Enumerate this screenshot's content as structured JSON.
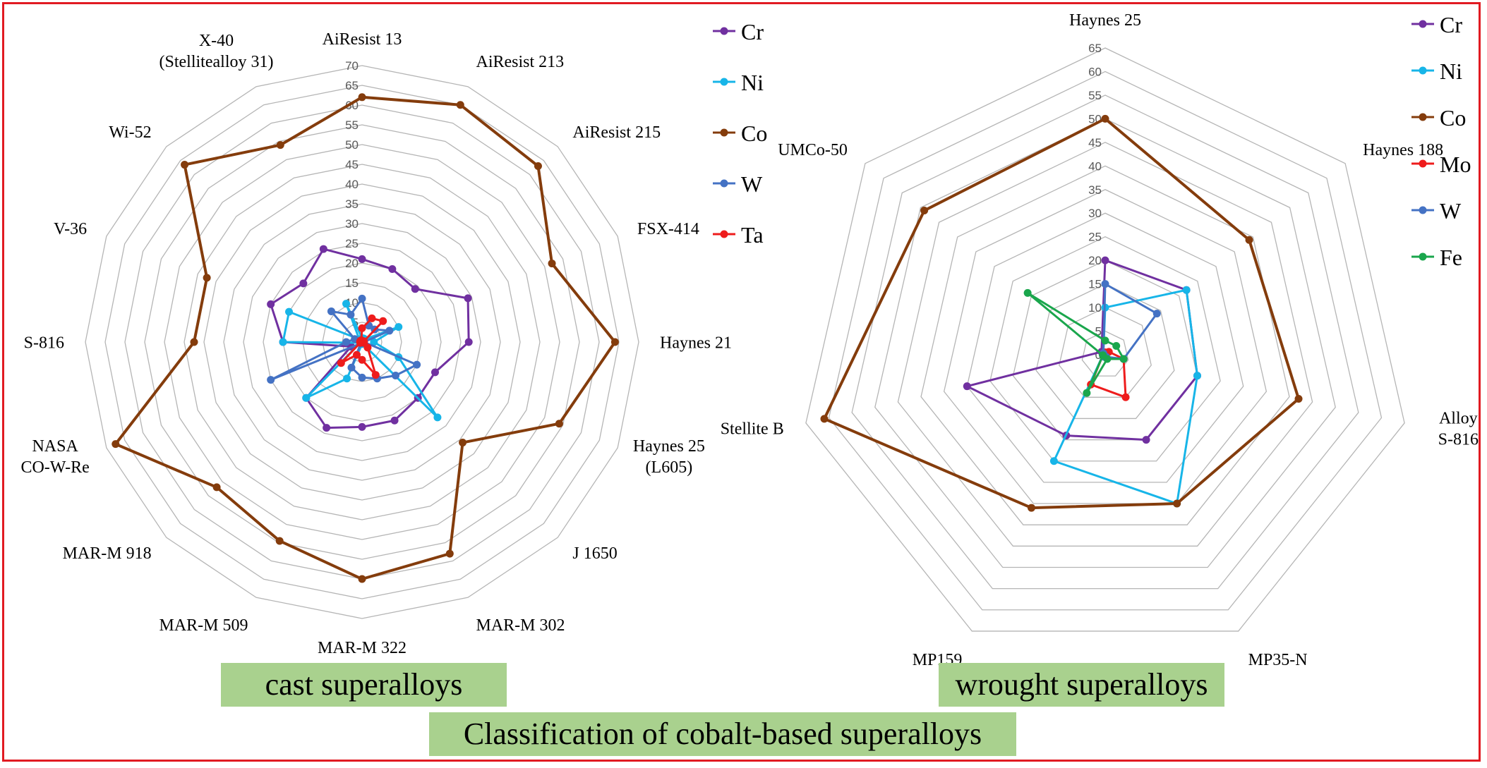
{
  "main_title": "Classification of cobalt-based superalloys",
  "series_colors": {
    "Cr": "#7030a0",
    "Ni": "#17b5e8",
    "Co": "#843c0c",
    "Mo": "#ee1c1c",
    "W": "#4472c4",
    "Ta": "#ee1c1c",
    "Fe": "#1aa64c"
  },
  "chart_data": [
    {
      "type": "radar",
      "caption": "cast superalloys",
      "axis_max": 70,
      "axis_step": 5,
      "ticks": [
        "0",
        "5",
        "10",
        "15",
        "20",
        "25",
        "30",
        "35",
        "40",
        "45",
        "50",
        "55",
        "60",
        "65",
        "70"
      ],
      "categories": [
        [
          "AiResist 13"
        ],
        [
          "AiResist 213"
        ],
        [
          "AiResist 215"
        ],
        [
          "FSX-414"
        ],
        [
          "Haynes 21"
        ],
        [
          "Haynes 25",
          "(L605)"
        ],
        [
          "J 1650"
        ],
        [
          "MAR-M 302"
        ],
        [
          "MAR-M 322"
        ],
        [
          "MAR-M 509"
        ],
        [
          "MAR-M 918"
        ],
        [
          "NASA",
          "CO-W-Re"
        ],
        [
          "S-816"
        ],
        [
          "V-36"
        ],
        [
          "Wi-52"
        ],
        [
          "X-40",
          "(Stellitealloy 31)"
        ]
      ],
      "legend": [
        "Cr",
        "Ni",
        "Co",
        "W",
        "Ta"
      ],
      "series": [
        {
          "name": "Cr",
          "values": [
            21,
            20,
            19,
            29,
            27,
            20,
            20,
            21.5,
            21.5,
            23.5,
            20,
            3,
            20,
            25,
            21,
            25.5
          ]
        },
        {
          "name": "Ni",
          "values": [
            1,
            1,
            1,
            10,
            3,
            10,
            27,
            0.5,
            0.5,
            10,
            20,
            0.5,
            20,
            20,
            1,
            10.5
          ]
        },
        {
          "name": "Co",
          "values": [
            62,
            65,
            63,
            52,
            64,
            54,
            36,
            58,
            60,
            54.5,
            52,
            67.5,
            42.5,
            42.5,
            63.5,
            54
          ]
        },
        {
          "name": "W",
          "values": [
            11,
            4.5,
            4.5,
            7.5,
            0.5,
            15,
            12,
            10,
            9,
            7,
            0.5,
            25,
            4,
            2,
            11,
            7.5
          ]
        },
        {
          "name": "Ta",
          "values": [
            3.5,
            6.5,
            7.5,
            0.5,
            0.5,
            0.5,
            2,
            9,
            4.5,
            3.5,
            7.5,
            0.5,
            0.5,
            0.5,
            0.5,
            0.5
          ]
        }
      ]
    },
    {
      "type": "radar",
      "caption": "wrought superalloys",
      "axis_max": 65,
      "axis_step": 5,
      "ticks": [
        "0",
        "5",
        "10",
        "15",
        "20",
        "25",
        "30",
        "35",
        "40",
        "45",
        "50",
        "55",
        "60",
        "65"
      ],
      "categories": [
        [
          "Haynes 25"
        ],
        [
          "Haynes 188"
        ],
        [
          "Alloy",
          "S-816"
        ],
        [
          "MP35-N"
        ],
        [
          "MP159"
        ],
        [
          "Stellite B"
        ],
        [
          "UMCo-50"
        ]
      ],
      "legend": [
        "Cr",
        "Ni",
        "Co",
        "Mo",
        "W",
        "Fe"
      ],
      "series": [
        {
          "name": "Cr",
          "values": [
            20,
            22,
            20,
            20,
            19,
            30,
            1
          ]
        },
        {
          "name": "Ni",
          "values": [
            10,
            22,
            20,
            35,
            25,
            0.5,
            0.5
          ]
        },
        {
          "name": "Co",
          "values": [
            50,
            39,
            42,
            35,
            36,
            61,
            49
          ]
        },
        {
          "name": "Mo",
          "values": [
            0.5,
            1,
            4,
            10,
            7,
            0.5,
            0.5
          ]
        },
        {
          "name": "W",
          "values": [
            15,
            14,
            4,
            0.5,
            0.5,
            0.5,
            0.5
          ]
        },
        {
          "name": "Fe",
          "values": [
            3,
            3,
            4,
            1,
            9,
            0.5,
            21
          ]
        }
      ]
    }
  ]
}
